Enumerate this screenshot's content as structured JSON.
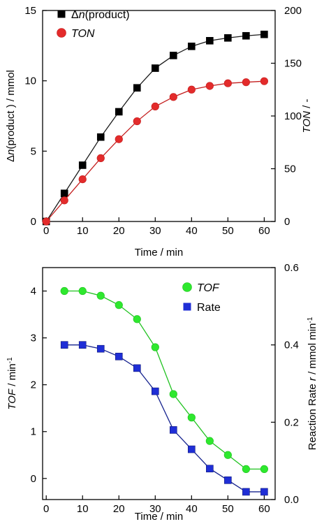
{
  "chart_data": [
    {
      "type": "line",
      "x": [
        0,
        5,
        10,
        15,
        20,
        25,
        30,
        35,
        40,
        45,
        50,
        55,
        60
      ],
      "xlabel": "Time / min",
      "xlim": [
        -1,
        63
      ],
      "xticks": [
        0,
        10,
        20,
        30,
        40,
        50,
        60
      ],
      "ylabel_left": {
        "prefix": "Δ",
        "italic": "n",
        "suffix": "(product ) / mmol"
      },
      "ylabel_right": {
        "italic": "TON",
        "suffix": " / -"
      },
      "ylim_left": [
        0,
        15
      ],
      "yticks_left": [
        0,
        5,
        10,
        15
      ],
      "ylim_right": [
        0,
        200
      ],
      "yticks_right": [
        0,
        50,
        100,
        150,
        200
      ],
      "series": [
        {
          "name": "Δn(product)",
          "legend_prefix": "Δ",
          "legend_italic": "n",
          "legend_suffix": "(product)",
          "axis": "left",
          "marker": "square",
          "color": "#000000",
          "line_color": "#1a1a1a",
          "values": [
            0,
            2.0,
            4.0,
            6.0,
            7.8,
            9.5,
            10.9,
            11.8,
            12.45,
            12.85,
            13.05,
            13.2,
            13.3
          ]
        },
        {
          "name": "TON",
          "legend_prefix": "",
          "legend_italic": "TON",
          "legend_suffix": "",
          "axis": "right",
          "marker": "circle",
          "color": "#e32b2b",
          "line_color": "#c41e1e",
          "values": [
            0,
            20,
            40,
            60,
            78,
            95,
            109,
            118,
            125,
            128.5,
            131,
            132,
            133
          ]
        }
      ],
      "legend_position": "top-left"
    },
    {
      "type": "line",
      "x": [
        5,
        10,
        15,
        20,
        25,
        30,
        35,
        40,
        45,
        50,
        55,
        60
      ],
      "xlabel": "Time / min",
      "xlim": [
        -1,
        63
      ],
      "xticks": [
        0,
        10,
        20,
        30,
        40,
        50,
        60
      ],
      "ylabel_left": {
        "prefix": "",
        "italic": "TOF",
        "suffix": " / min",
        "sup": "-1"
      },
      "ylabel_right": {
        "prefix": "Reaction Rate ",
        "italic": "r",
        "suffix": " / mmol min",
        "sup": "-1"
      },
      "ylim_left": [
        -0.45,
        4.5
      ],
      "yticks_left": [
        0,
        1,
        2,
        3,
        4
      ],
      "ylim_right": [
        0,
        0.6
      ],
      "yticks_right": [
        0.0,
        0.2,
        0.4,
        0.6
      ],
      "series": [
        {
          "name": "TOF",
          "legend_prefix": "",
          "legend_italic": "TOF",
          "legend_suffix": "",
          "axis": "left",
          "marker": "circle",
          "color": "#2ee82e",
          "line_color": "#1fc21f",
          "values": [
            4.0,
            4.0,
            3.9,
            3.7,
            3.4,
            2.8,
            1.8,
            1.3,
            0.8,
            0.5,
            0.2,
            0.2
          ]
        },
        {
          "name": "Rate",
          "legend_prefix": "",
          "legend_italic": "",
          "legend_suffix": "Rate",
          "axis": "right",
          "marker": "square",
          "color": "#1f2ed6",
          "line_color": "#16238f",
          "values": [
            0.4,
            0.4,
            0.39,
            0.37,
            0.34,
            0.28,
            0.18,
            0.13,
            0.08,
            0.05,
            0.02,
            0.02
          ]
        }
      ],
      "legend_position": "top-right"
    }
  ]
}
